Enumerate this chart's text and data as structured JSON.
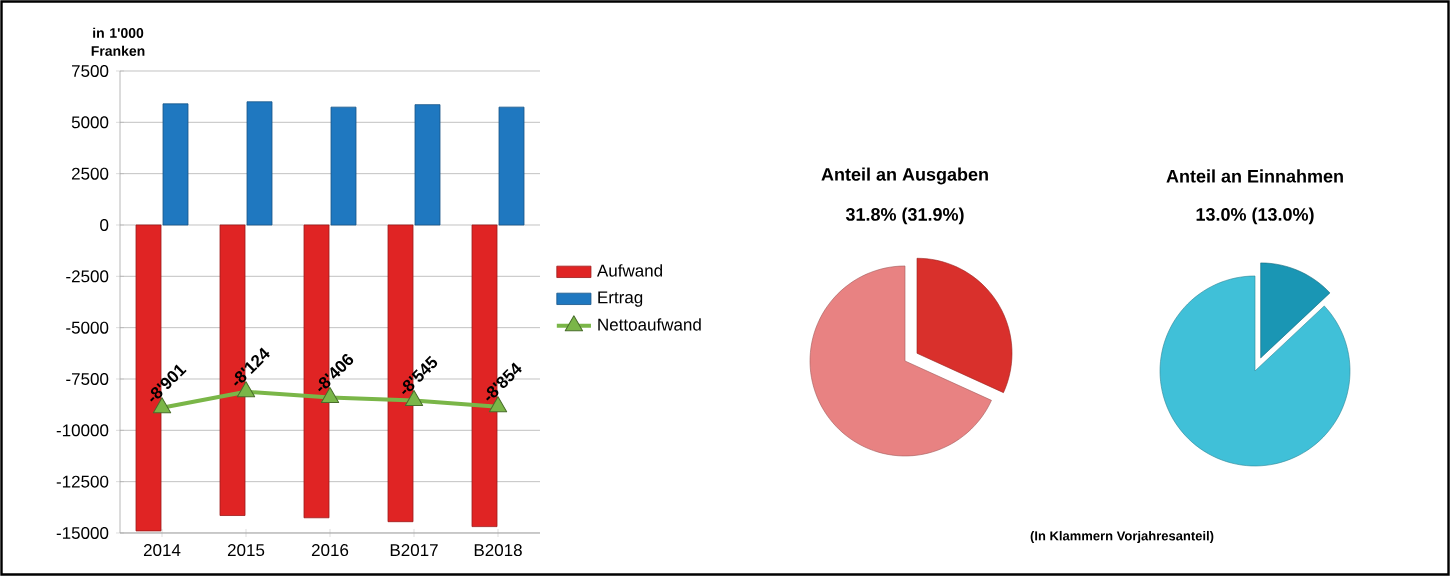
{
  "chart_data": [
    {
      "type": "bar",
      "ylabel": "in 1'000 Franken",
      "categories": [
        "2014",
        "2015",
        "2016",
        "B2017",
        "B2018"
      ],
      "series": [
        {
          "name": "Aufwand",
          "color": "#e02424",
          "values": [
            -14900,
            -14150,
            -14260,
            -14450,
            -14690
          ]
        },
        {
          "name": "Ertrag",
          "color": "#1f78c0",
          "values": [
            5900,
            6000,
            5740,
            5860,
            5740
          ]
        },
        {
          "name": "Nettoaufwand",
          "type": "line",
          "color": "#7ab648",
          "marker": "triangle",
          "values": [
            -8901,
            -8124,
            -8406,
            -8545,
            -8854
          ],
          "value_labels": [
            "-8'901",
            "-8'124",
            "-8'406",
            "-8'545",
            "-8'854"
          ]
        }
      ],
      "ylim": [
        -15000,
        7500
      ],
      "yticks": [
        -15000,
        -12500,
        -10000,
        -7500,
        -5000,
        -2500,
        0,
        2500,
        5000,
        7500
      ],
      "grid": "y",
      "legend": "right"
    },
    {
      "type": "pie",
      "title": "Anteil an Ausgaben",
      "subtitle": "31.8% (31.9%)",
      "categories": [
        null,
        null
      ],
      "values": [
        31.8,
        68.2
      ],
      "colors": [
        "#d9302c",
        "#e88282"
      ]
    },
    {
      "type": "pie",
      "title": "Anteil an Einnahmen",
      "subtitle": "13.0% (13.0%)",
      "categories": [
        null,
        null
      ],
      "values": [
        13.0,
        87.0
      ],
      "colors": [
        "#1a96b4",
        "#40c0d8"
      ],
      "annotations": [
        "(In Klammern Vorjahresanteil)"
      ]
    }
  ]
}
